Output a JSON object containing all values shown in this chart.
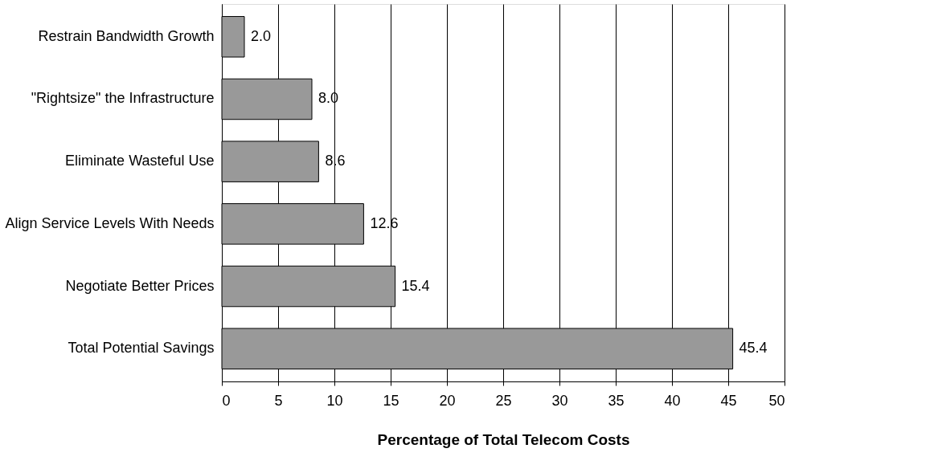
{
  "chart_data": {
    "type": "bar",
    "orientation": "horizontal",
    "xlabel": "Percentage of Total Telecom Costs",
    "categories": [
      "Restrain Bandwidth Growth",
      "\"Rightsize\" the Infrastructure",
      "Eliminate Wasteful Use",
      "Align Service Levels With Needs",
      "Negotiate Better Prices",
      "Total Potential Savings"
    ],
    "values": [
      2.0,
      8.0,
      8.6,
      12.6,
      15.4,
      45.4
    ],
    "color": "#999999",
    "xlim": [
      0,
      50
    ],
    "xticks": [
      0,
      5,
      10,
      15,
      20,
      25,
      30,
      35,
      40,
      45,
      50
    ],
    "value_labels": [
      "2.0",
      "8.0",
      "8.6",
      "12.6",
      "15.4",
      "45.4"
    ],
    "grid": "x"
  }
}
